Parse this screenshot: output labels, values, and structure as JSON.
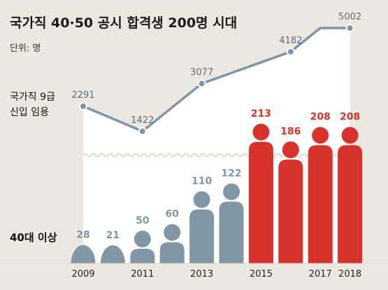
{
  "chart_data": {
    "type": "line+pictogram-bar",
    "title": "국가직 40·50 공시 합격생 200명 시대",
    "unit_label": "단위: 명",
    "line_series": {
      "name_lines": [
        "국가직 9급",
        "신입 임용"
      ],
      "x": [
        2009,
        2010,
        2011,
        2012,
        2013,
        2014,
        2015,
        2016,
        2017,
        2018
      ],
      "values": [
        2291,
        null,
        1422,
        null,
        3077,
        null,
        null,
        4182,
        null,
        5002
      ]
    },
    "bar_series": {
      "name": "40대 이상",
      "x": [
        2009,
        2010,
        2011,
        2012,
        2013,
        2014,
        2015,
        2016,
        2017,
        2018
      ],
      "values": [
        28,
        21,
        50,
        60,
        110,
        122,
        213,
        186,
        208,
        208
      ]
    },
    "x_tick_labels": [
      "2009",
      "2011",
      "2013",
      "2015",
      "2017",
      "2018"
    ],
    "colors": {
      "background": "#ece8e1",
      "line": "#7f95a5",
      "gray_figure": "#8197a6",
      "red_figure": "#d8332a",
      "red_label": "#d8332a",
      "gray_label": "#8197a6"
    }
  }
}
